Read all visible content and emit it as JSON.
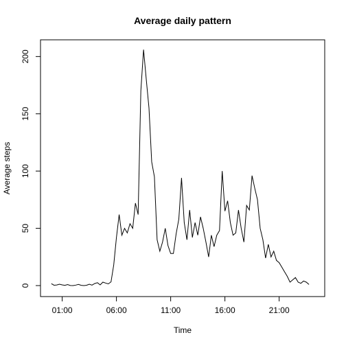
{
  "chart_data": {
    "type": "line",
    "title": "Average daily pattern",
    "xlabel": "Time",
    "ylabel": "Average steps",
    "x": [
      0,
      0.25,
      0.5,
      0.75,
      1,
      1.25,
      1.5,
      1.75,
      2,
      2.25,
      2.5,
      2.75,
      3,
      3.25,
      3.5,
      3.75,
      4,
      4.25,
      4.5,
      4.75,
      5,
      5.25,
      5.5,
      5.75,
      6,
      6.25,
      6.5,
      6.75,
      7,
      7.25,
      7.5,
      7.75,
      8,
      8.25,
      8.5,
      8.75,
      9,
      9.25,
      9.5,
      9.75,
      10,
      10.25,
      10.5,
      10.75,
      11,
      11.25,
      11.5,
      11.75,
      12,
      12.25,
      12.5,
      12.75,
      13,
      13.25,
      13.5,
      13.75,
      14,
      14.25,
      14.5,
      14.75,
      15,
      15.25,
      15.5,
      15.75,
      16,
      16.25,
      16.5,
      16.75,
      17,
      17.25,
      17.5,
      17.75,
      18,
      18.25,
      18.5,
      18.75,
      19,
      19.25,
      19.5,
      19.75,
      20,
      20.25,
      20.5,
      20.75,
      21,
      21.25,
      21.5,
      21.75,
      22,
      22.25,
      22.5,
      22.75,
      23,
      23.25,
      23.5,
      23.75
    ],
    "series": [
      {
        "name": "Average steps",
        "color": "#000000",
        "values": [
          1.7,
          0.3,
          0.5,
          1.2,
          0.6,
          0.2,
          0.9,
          0.1,
          0,
          0.4,
          1.0,
          0.2,
          0,
          0.3,
          1.2,
          0.4,
          1.8,
          2.5,
          0.6,
          3.0,
          2.2,
          1.5,
          3.2,
          18,
          42,
          62,
          44,
          50,
          46,
          54,
          50,
          72,
          62,
          170,
          206,
          180,
          155,
          108,
          95,
          40,
          30,
          38,
          50,
          35,
          28,
          28,
          45,
          58,
          94,
          55,
          40,
          66,
          42,
          55,
          44,
          60,
          50,
          38,
          25,
          44,
          34,
          44,
          48,
          100,
          65,
          74,
          55,
          44,
          46,
          66,
          50,
          38,
          70,
          66,
          96,
          85,
          75,
          50,
          40,
          24,
          36,
          25,
          30,
          22,
          20,
          16,
          12,
          8,
          3,
          5,
          7,
          3,
          2,
          4,
          3,
          1
        ]
      }
    ],
    "xlim": [
      -1,
      25.2
    ],
    "ylim": [
      -9.6,
      214.6
    ],
    "xticks": [
      {
        "value": 1,
        "label": "01:00"
      },
      {
        "value": 6,
        "label": "06:00"
      },
      {
        "value": 11,
        "label": "11:00"
      },
      {
        "value": 16,
        "label": "16:00"
      },
      {
        "value": 21,
        "label": "21:00"
      }
    ],
    "yticks": [
      0,
      50,
      100,
      150,
      200
    ]
  }
}
